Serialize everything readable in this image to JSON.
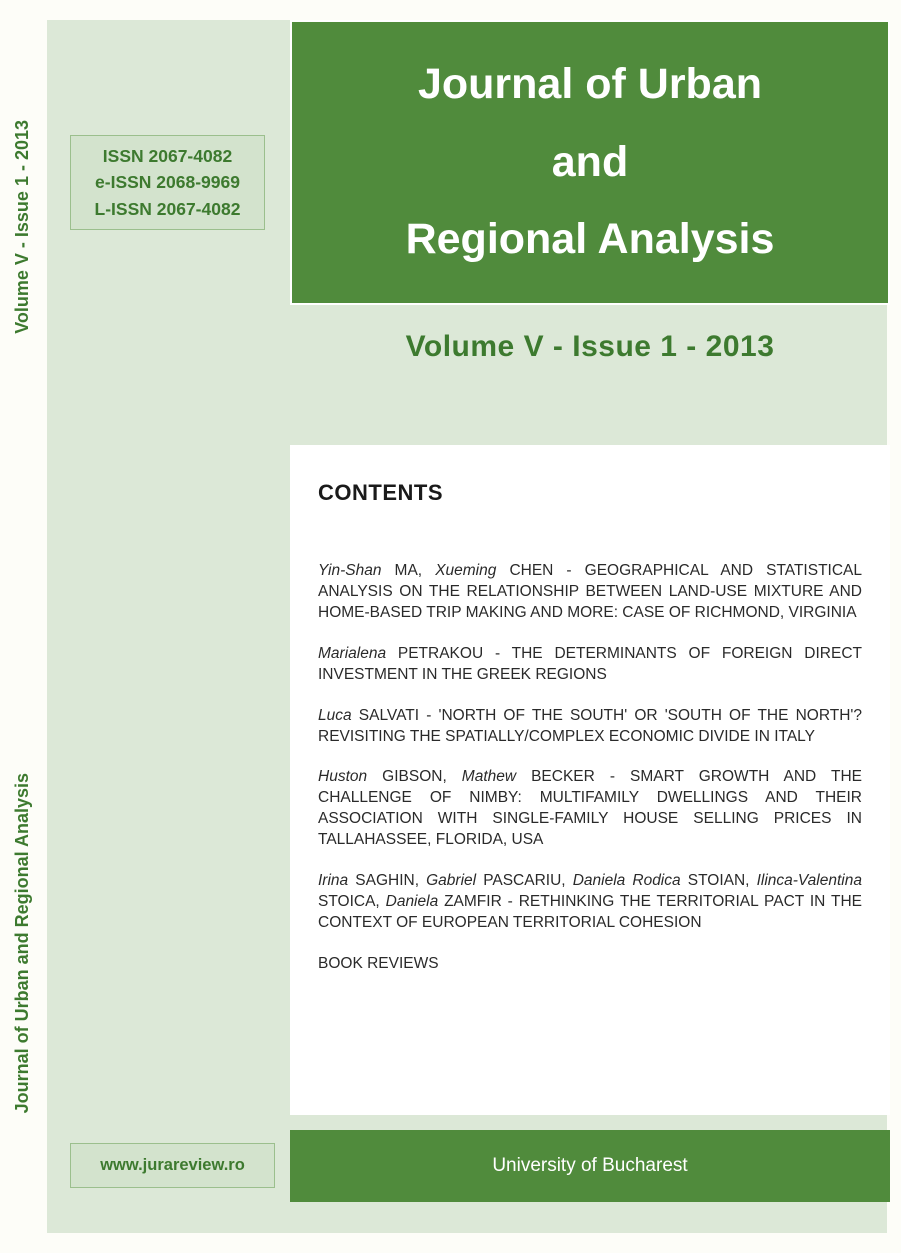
{
  "spine": {
    "volume_label": "Volume V - Issue 1 - 2013",
    "journal_label": "Journal of Urban and Regional Analysis"
  },
  "colors": {
    "brand_green": "#508b3c",
    "text_green": "#3d7a2f",
    "panel_bg": "#dce8d7",
    "box_bg": "#d3e3cd",
    "box_border": "#9bbf8d",
    "page_bg": "#fdfdf8",
    "white": "#ffffff"
  },
  "title": {
    "line1": "Journal of Urban",
    "line2": "and",
    "line3": "Regional Analysis"
  },
  "issn": {
    "print": "ISSN 2067-4082",
    "electronic": "e-ISSN 2068-9969",
    "linking": "L-ISSN 2067-4082"
  },
  "issue_label": "Volume V - Issue 1 - 2013",
  "contents": {
    "heading": "CONTENTS",
    "articles": [
      {
        "html": "<em>Yin-Shan</em> MA, <em>Xueming</em> CHEN - GEOGRAPHICAL AND STATISTICAL ANALYSIS ON THE RELATIONSHIP BETWEEN LAND-USE MIXTURE AND HOME-BASED TRIP MAKING AND MORE: CASE OF RICHMOND, VIRGINIA"
      },
      {
        "html": "<em>Marialena</em> PETRAKOU - THE DETERMINANTS OF FOREIGN DIRECT  INVESTMENT IN THE GREEK REGIONS"
      },
      {
        "html": "<em>Luca</em> SALVATI - 'NORTH OF THE SOUTH' OR 'SOUTH OF THE NORTH'? REVISITING THE SPATIALLY/COMPLEX ECONOMIC DIVIDE IN ITALY"
      },
      {
        "html": "<em>Huston</em> GIBSON, <em>Mathew</em> BECKER - SMART GROWTH AND THE  CHALLENGE OF NIMBY: MULTIFAMILY DWELLINGS AND THEIR ASSOCIATION WITH SINGLE-FAMILY HOUSE SELLING PRICES IN  TALLAHASSEE, FLORIDA, USA"
      },
      {
        "html": "<em>Irina</em> SAGHIN, <em>Gabriel</em> PASCARIU, <em>Daniela Rodica</em> STOIAN, <em>Ilinca-Valentina</em> STOICA, <em>Daniela</em> ZAMFIR - RETHINKING THE TERRITORIAL PACT IN THE CONTEXT OF EUROPEAN TERRITORIAL COHESION"
      },
      {
        "html": "BOOK REVIEWS"
      }
    ]
  },
  "footer": {
    "publisher": "University of Bucharest",
    "url": "www.jurareview.ro"
  }
}
